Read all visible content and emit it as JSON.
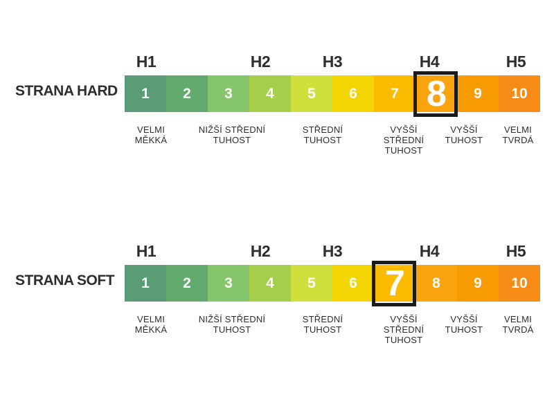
{
  "page": {
    "background": "#ffffff",
    "text_color": "#2d2d2d",
    "highlight_border_color": "#1b1b1b"
  },
  "rows": [
    {
      "title": "STRANA HARD",
      "selected_value": "8"
    },
    {
      "title": "STRANA SOFT",
      "selected_value": "7"
    }
  ],
  "scale": {
    "h_headers": [
      {
        "label": "H1"
      },
      {
        "label": "H2"
      },
      {
        "label": "H3"
      },
      {
        "label": "H4"
      },
      {
        "label": "H5"
      }
    ],
    "segments": [
      {
        "value": "1",
        "color": "#5a9c77"
      },
      {
        "value": "2",
        "color": "#63aa6e"
      },
      {
        "value": "3",
        "color": "#85c56c"
      },
      {
        "value": "4",
        "color": "#a6ce4d"
      },
      {
        "value": "5",
        "color": "#cfe03c"
      },
      {
        "value": "6",
        "color": "#f2d503"
      },
      {
        "value": "7",
        "color": "#fcba00"
      },
      {
        "value": "8",
        "color": "#f9a30f"
      },
      {
        "value": "9",
        "color": "#f89a02"
      },
      {
        "value": "10",
        "color": "#f68c15"
      }
    ],
    "descriptions": [
      "VELMI\nMĚKKÁ",
      "NIŽŠÍ STŘEDNÍ\nTUHOST",
      "STŘEDNÍ\nTUHOST",
      "VYŠŠÍ\nSTŘEDNÍ\nTUHOST",
      "VYŠŠÍ\nTUHOST",
      "VELMI\nTVRDÁ"
    ]
  }
}
